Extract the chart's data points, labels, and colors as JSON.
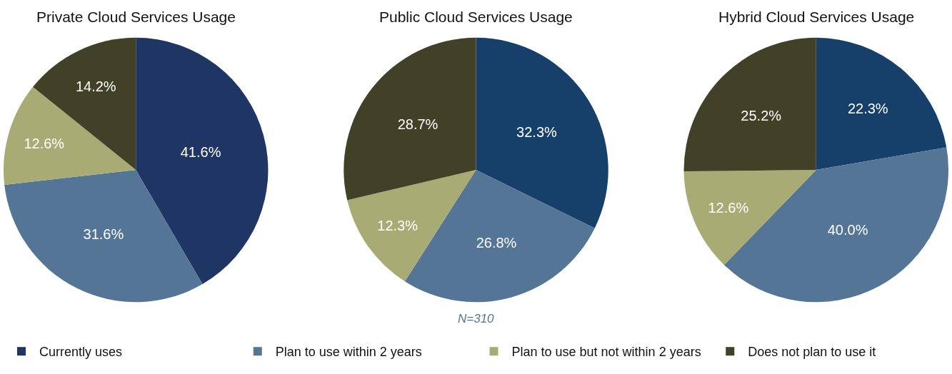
{
  "chart_data": [
    {
      "type": "pie",
      "title": "Private Cloud Services Usage",
      "categories": [
        "Currently uses",
        "Plan to use within 2 years",
        "Plan to use but not within 2 years",
        "Does not plan to use it"
      ],
      "values": [
        41.6,
        31.6,
        12.6,
        14.2
      ],
      "value_labels": [
        "41.6%",
        "31.6%",
        "12.6%",
        "14.2%"
      ],
      "colors": [
        "#1f3564",
        "#547596",
        "#a8ab73",
        "#414127"
      ],
      "legend": "bottom"
    },
    {
      "type": "pie",
      "title": "Public Cloud Services Usage",
      "values": [
        32.3,
        26.8,
        12.3,
        28.7
      ],
      "value_labels": [
        "32.3%",
        "26.8%",
        "12.3%",
        "28.7%"
      ],
      "colors": [
        "#16406a",
        "#547596",
        "#a8ab73",
        "#414127"
      ],
      "annotations": [
        "N=310"
      ]
    },
    {
      "type": "pie",
      "title": "Hybrid Cloud Services Usage",
      "values": [
        22.3,
        40.0,
        12.6,
        25.2
      ],
      "value_labels": [
        "22.3%",
        "40.0%",
        "12.6%",
        "25.2%"
      ],
      "colors": [
        "#16406a",
        "#547596",
        "#a8ab73",
        "#414127"
      ]
    }
  ]
}
